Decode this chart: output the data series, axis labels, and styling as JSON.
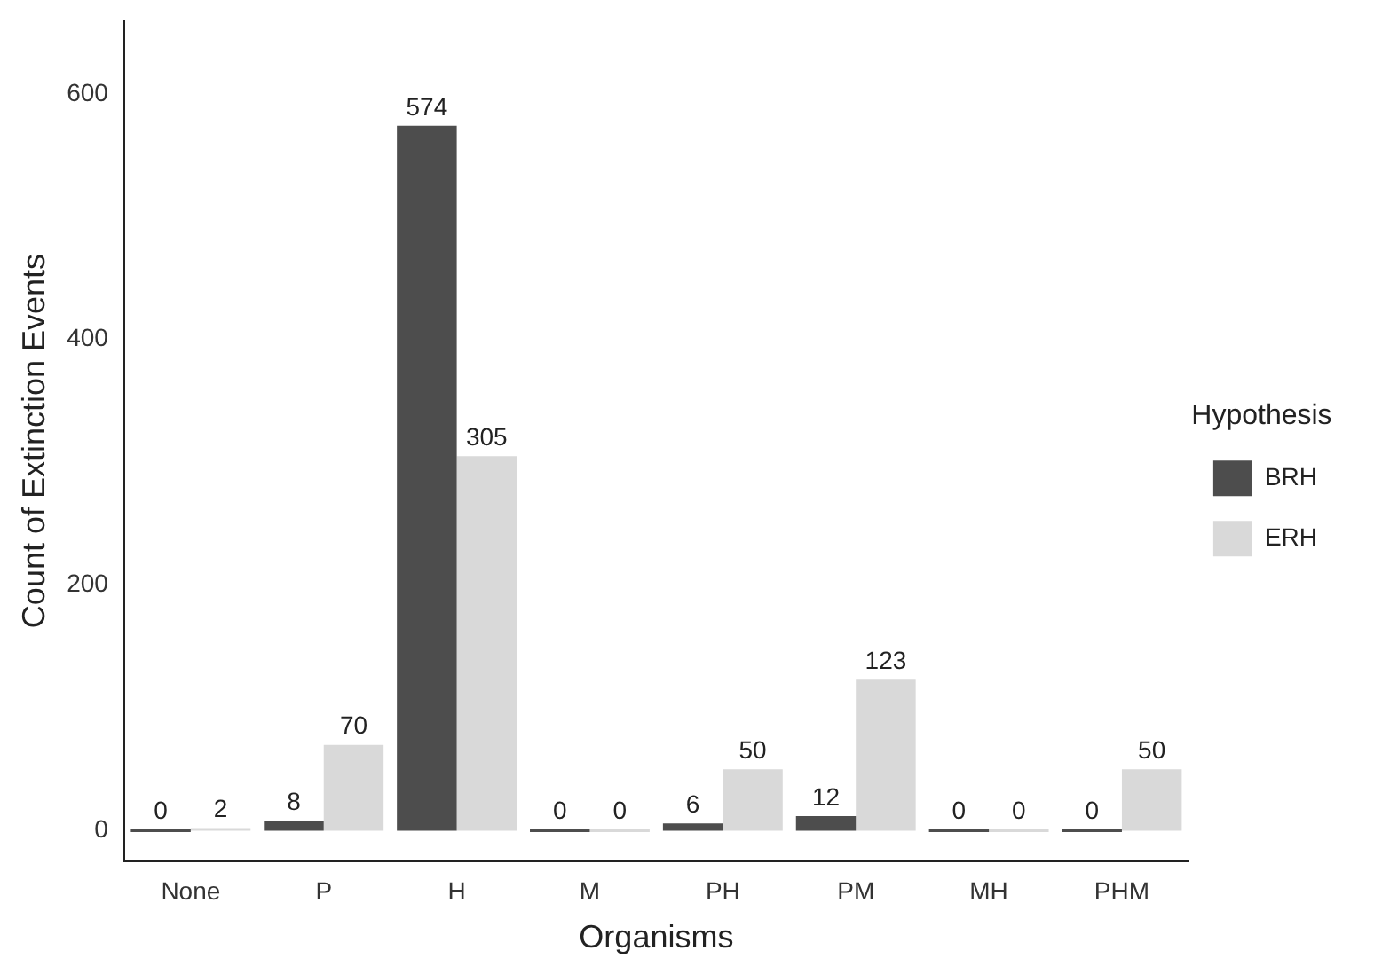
{
  "chart_data": {
    "type": "bar",
    "xlabel": "Organisms",
    "ylabel": "Count of Extinction Events",
    "legend_title": "Hypothesis",
    "categories": [
      "None",
      "P",
      "H",
      "M",
      "PH",
      "PM",
      "MH",
      "PHM"
    ],
    "series": [
      {
        "name": "BRH",
        "color": "#4d4d4d",
        "values": [
          0,
          8,
          574,
          0,
          6,
          12,
          0,
          0
        ]
      },
      {
        "name": "ERH",
        "color": "#d9d9d9",
        "values": [
          2,
          70,
          305,
          0,
          50,
          123,
          0,
          50
        ]
      }
    ],
    "ylim": [
      -25,
      660
    ],
    "yticks": [
      0,
      200,
      400,
      600
    ],
    "grid": false,
    "legend": "right",
    "data_labels": true
  }
}
